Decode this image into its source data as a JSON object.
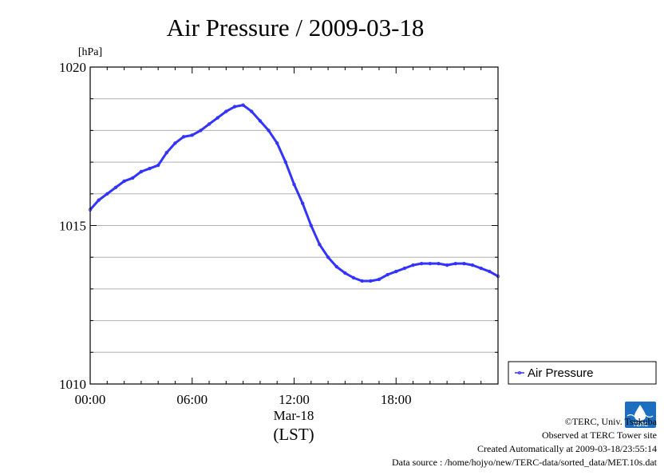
{
  "page": {
    "title": "Air Pressure / 2009-03-18",
    "unit_label": "[hPa]",
    "date_label": "Mar-18",
    "timezone_label": "(LST)",
    "legend_label": "Air Pressure",
    "logo_text": "TERC",
    "footer": {
      "copyright": "©TERC, Univ. Tsukuba",
      "observed": "Observed at TERC Tower site",
      "created": "Created Automatically at 2009-03-18/23:55:14",
      "source": "Data source : /home/hojyo/new/TERC-data/sorted_data/MET.10s.dat"
    }
  },
  "colors": {
    "series": "#3333ff",
    "grid": "#b0b0b0",
    "logo": "#1c6fc0"
  },
  "chart_data": {
    "type": "line",
    "title": "Air Pressure / 2009-03-18",
    "xlabel": "Mar-18 (LST)",
    "ylabel": "[hPa]",
    "xlim": [
      0,
      24
    ],
    "ylim": [
      1010,
      1020
    ],
    "x_ticks": [
      0,
      6,
      12,
      18
    ],
    "x_tick_labels": [
      "00:00",
      "06:00",
      "12:00",
      "18:00"
    ],
    "y_ticks": [
      1010,
      1015,
      1020
    ],
    "y_tick_labels": [
      "1010",
      "1015",
      "1020"
    ],
    "grid": true,
    "legend_position": "right",
    "series": [
      {
        "name": "Air Pressure",
        "x": [
          0,
          0.5,
          1,
          1.5,
          2,
          2.5,
          3,
          3.5,
          4,
          4.5,
          5,
          5.5,
          6,
          6.5,
          7,
          7.5,
          8,
          8.5,
          9,
          9.5,
          10,
          10.5,
          11,
          11.5,
          12,
          12.5,
          13,
          13.5,
          14,
          14.5,
          15,
          15.5,
          16,
          16.5,
          17,
          17.5,
          18,
          18.5,
          19,
          19.5,
          20,
          20.5,
          21,
          21.5,
          22,
          22.5,
          23,
          23.5,
          24
        ],
        "y": [
          1015.5,
          1015.8,
          1016.0,
          1016.2,
          1016.4,
          1016.5,
          1016.7,
          1016.8,
          1016.9,
          1017.3,
          1017.6,
          1017.8,
          1017.85,
          1018.0,
          1018.2,
          1018.4,
          1018.6,
          1018.75,
          1018.8,
          1018.6,
          1018.3,
          1018.0,
          1017.6,
          1017.0,
          1016.3,
          1015.7,
          1015.0,
          1014.4,
          1014.0,
          1013.7,
          1013.5,
          1013.35,
          1013.25,
          1013.25,
          1013.3,
          1013.45,
          1013.55,
          1013.65,
          1013.75,
          1013.8,
          1013.8,
          1013.8,
          1013.75,
          1013.8,
          1013.8,
          1013.75,
          1013.65,
          1013.55,
          1013.4
        ]
      }
    ]
  }
}
